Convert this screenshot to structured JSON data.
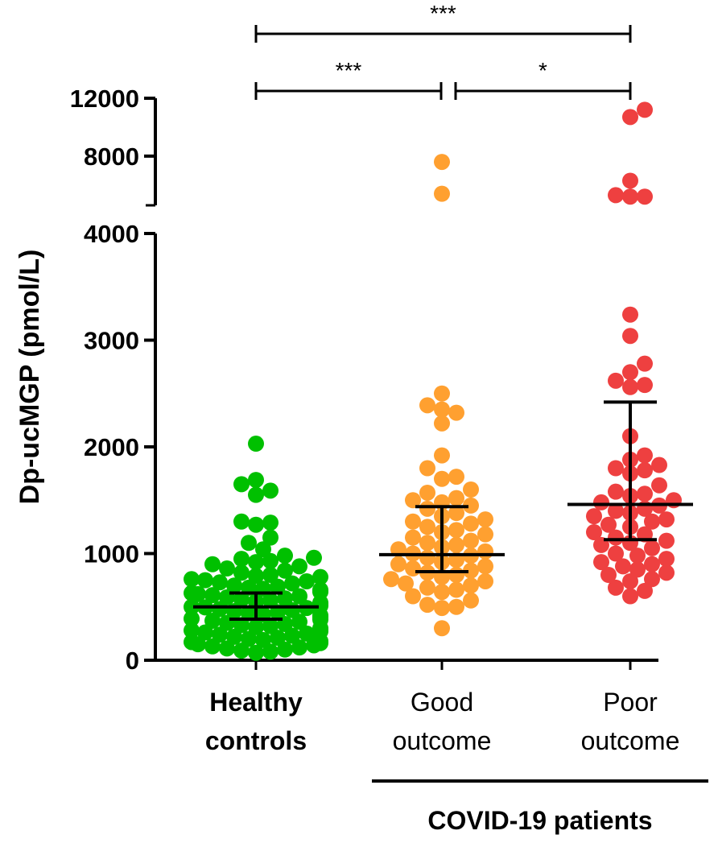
{
  "chart_data": {
    "type": "scatter",
    "ylabel": "Dp-ucMGP (pmol/L)",
    "y_axis": {
      "break": true,
      "lower_segment": {
        "range": [
          0,
          4000
        ],
        "ticks": [
          0,
          1000,
          2000,
          3000,
          4000
        ]
      },
      "upper_segment": {
        "range": [
          4600,
          12000
        ],
        "ticks": [
          8000,
          12000
        ]
      }
    },
    "y_tick_labels": [
      "0",
      "1000",
      "2000",
      "3000",
      "4000",
      "8000",
      "12000"
    ],
    "group_label": "COVID-19 patients",
    "groups": [
      {
        "label_line1": "Healthy",
        "label_line2": "controls",
        "color": "#00c000",
        "median": 500,
        "iqr": [
          385,
          630
        ],
        "points": [
          2030,
          1690,
          1650,
          1590,
          1550,
          1300,
          1290,
          1270,
          1150,
          1100,
          1040,
          980,
          960,
          950,
          930,
          920,
          900,
          880,
          860,
          840,
          820,
          800,
          790,
          780,
          760,
          750,
          740,
          730,
          720,
          700,
          690,
          680,
          670,
          660,
          650,
          640,
          630,
          620,
          610,
          600,
          590,
          580,
          570,
          560,
          550,
          540,
          530,
          520,
          510,
          500,
          495,
          490,
          480,
          470,
          460,
          450,
          440,
          430,
          420,
          410,
          400,
          390,
          380,
          370,
          360,
          350,
          340,
          330,
          320,
          310,
          300,
          290,
          280,
          270,
          260,
          250,
          240,
          230,
          220,
          210,
          200,
          190,
          180,
          170,
          160,
          150,
          140,
          130,
          120,
          110,
          100,
          90,
          80,
          70
        ]
      },
      {
        "label_line1": "Good",
        "label_line2": "outcome",
        "color": "#ffa030",
        "median": 990,
        "iqr": [
          830,
          1440
        ],
        "points": [
          7600,
          5400,
          2500,
          2390,
          2350,
          2320,
          2220,
          1920,
          1800,
          1720,
          1700,
          1600,
          1570,
          1520,
          1500,
          1480,
          1450,
          1420,
          1380,
          1350,
          1320,
          1300,
          1280,
          1250,
          1220,
          1200,
          1180,
          1150,
          1120,
          1100,
          1080,
          1060,
          1040,
          1020,
          1000,
          980,
          960,
          940,
          920,
          900,
          880,
          860,
          840,
          820,
          800,
          780,
          760,
          740,
          720,
          700,
          680,
          660,
          640,
          600,
          560,
          520,
          500,
          490,
          300
        ]
      },
      {
        "label_line1": "Poor",
        "label_line2": "outcome",
        "color": "#ee4040",
        "median": 1460,
        "iqr": [
          1130,
          2420
        ],
        "points": [
          11200,
          10700,
          6300,
          5300,
          5200,
          5200,
          3240,
          3040,
          2780,
          2700,
          2620,
          2580,
          2560,
          2100,
          1920,
          1880,
          1830,
          1800,
          1780,
          1750,
          1640,
          1580,
          1560,
          1540,
          1500,
          1480,
          1450,
          1420,
          1400,
          1380,
          1350,
          1320,
          1300,
          1270,
          1250,
          1200,
          1180,
          1150,
          1120,
          1100,
          1080,
          1050,
          1000,
          980,
          950,
          920,
          900,
          880,
          850,
          820,
          800,
          760,
          740,
          680,
          650,
          600
        ]
      }
    ],
    "significance": [
      {
        "from": 0,
        "to": 1,
        "label": "***",
        "level": 2
      },
      {
        "from": 1,
        "to": 2,
        "label": "*",
        "level": 2
      },
      {
        "from": 0,
        "to": 2,
        "label": "***",
        "level": 1
      }
    ]
  }
}
